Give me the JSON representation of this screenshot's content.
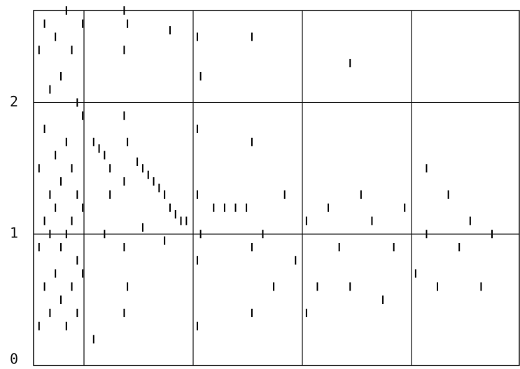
{
  "chart_data": {
    "type": "scatter",
    "color": "#000000",
    "ylim": [
      0,
      2.7
    ],
    "yticks": [
      0,
      1,
      2
    ],
    "xlim": [
      0,
      4.45
    ],
    "grid": true,
    "x": [
      0.05,
      0.05,
      0.05,
      0.05,
      0.1,
      0.1,
      0.1,
      0.1,
      0.15,
      0.15,
      0.15,
      0.15,
      0.2,
      0.2,
      0.2,
      0.2,
      0.25,
      0.25,
      0.25,
      0.25,
      0.3,
      0.3,
      0.3,
      0.3,
      0.35,
      0.35,
      0.35,
      0.35,
      0.4,
      0.4,
      0.4,
      0.4,
      0.45,
      0.45,
      0.45,
      0.45,
      0.55,
      0.6,
      0.65,
      0.7,
      0.55,
      0.65,
      0.7,
      0.83,
      0.83,
      0.83,
      0.83,
      0.83,
      0.83,
      0.86,
      0.86,
      0.86,
      0.95,
      1.0,
      1.05,
      1.1,
      1.15,
      1.2,
      1.25,
      1.3,
      1.35,
      1.4,
      1.0,
      1.2,
      1.25,
      1.5,
      1.5,
      1.5,
      1.5,
      1.5,
      1.53,
      1.53,
      1.65,
      1.75,
      1.85,
      1.95,
      2.0,
      2.0,
      2.0,
      2.0,
      2.1,
      2.2,
      2.3,
      2.4,
      2.5,
      2.5,
      2.6,
      2.7,
      2.8,
      2.9,
      3.0,
      3.1,
      3.2,
      3.3,
      3.4,
      3.5,
      3.6,
      3.7,
      3.8,
      3.9,
      4.0,
      4.1,
      4.2,
      3.6,
      2.9
    ],
    "values": [
      0.3,
      0.9,
      1.5,
      2.4,
      0.6,
      1.1,
      1.8,
      2.6,
      0.4,
      1.0,
      1.3,
      2.1,
      0.7,
      1.2,
      1.6,
      2.5,
      0.5,
      0.9,
      1.4,
      2.2,
      0.3,
      1.0,
      1.7,
      2.7,
      0.6,
      1.1,
      1.5,
      2.4,
      0.4,
      0.8,
      1.3,
      2.0,
      0.7,
      1.2,
      1.9,
      2.6,
      1.7,
      1.65,
      1.6,
      1.5,
      0.2,
      1.0,
      1.3,
      0.4,
      0.9,
      1.4,
      1.9,
      2.4,
      2.7,
      0.6,
      1.7,
      2.6,
      1.55,
      1.5,
      1.45,
      1.4,
      1.35,
      1.3,
      1.2,
      1.15,
      1.1,
      1.1,
      1.05,
      0.95,
      2.55,
      0.3,
      0.8,
      1.3,
      1.8,
      2.5,
      1.0,
      2.2,
      1.2,
      1.2,
      1.2,
      1.2,
      2.5,
      1.7,
      0.4,
      0.9,
      1.0,
      0.6,
      1.3,
      0.8,
      1.1,
      0.4,
      0.6,
      1.2,
      0.9,
      0.6,
      1.3,
      1.1,
      0.5,
      0.9,
      1.2,
      0.7,
      1.0,
      0.6,
      1.3,
      0.9,
      1.1,
      0.6,
      1.0,
      1.5,
      2.3
    ]
  }
}
